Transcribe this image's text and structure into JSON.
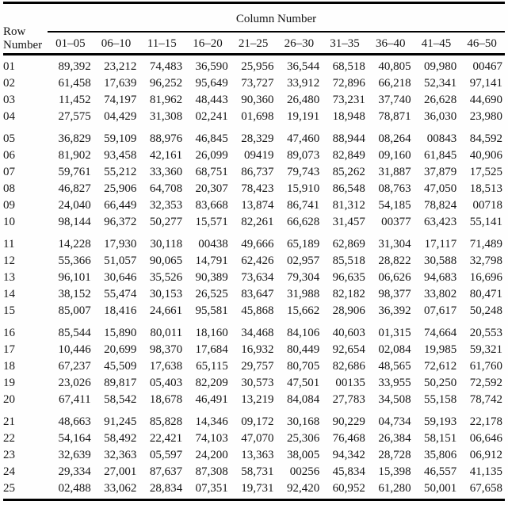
{
  "table": {
    "title": "Column Number",
    "row_header_line1": "Row",
    "row_header_line2": "Number",
    "column_headers": [
      "01–05",
      "06–10",
      "11–15",
      "16–20",
      "21–25",
      "26–30",
      "31–35",
      "36–40",
      "41–45",
      "46–50"
    ],
    "text_color": "#161616",
    "rule_color": "#000000",
    "row_groups": [
      {
        "rows": [
          {
            "row_number": "01",
            "values": [
              "89,392",
              "23,212",
              "74,483",
              "36,590",
              "25,956",
              "36,544",
              "68,518",
              "40,805",
              "09,980",
              "00467"
            ]
          },
          {
            "row_number": "02",
            "values": [
              "61,458",
              "17,639",
              "96,252",
              "95,649",
              "73,727",
              "33,912",
              "72,896",
              "66,218",
              "52,341",
              "97,141"
            ]
          },
          {
            "row_number": "03",
            "values": [
              "11,452",
              "74,197",
              "81,962",
              "48,443",
              "90,360",
              "26,480",
              "73,231",
              "37,740",
              "26,628",
              "44,690"
            ]
          },
          {
            "row_number": "04",
            "values": [
              "27,575",
              "04,429",
              "31,308",
              "02,241",
              "01,698",
              "19,191",
              "18,948",
              "78,871",
              "36,030",
              "23,980"
            ]
          }
        ]
      },
      {
        "rows": [
          {
            "row_number": "05",
            "values": [
              "36,829",
              "59,109",
              "88,976",
              "46,845",
              "28,329",
              "47,460",
              "88,944",
              "08,264",
              "00843",
              "84,592"
            ]
          },
          {
            "row_number": "06",
            "values": [
              "81,902",
              "93,458",
              "42,161",
              "26,099",
              "09419",
              "89,073",
              "82,849",
              "09,160",
              "61,845",
              "40,906"
            ]
          },
          {
            "row_number": "07",
            "values": [
              "59,761",
              "55,212",
              "33,360",
              "68,751",
              "86,737",
              "79,743",
              "85,262",
              "31,887",
              "37,879",
              "17,525"
            ]
          },
          {
            "row_number": "08",
            "values": [
              "46,827",
              "25,906",
              "64,708",
              "20,307",
              "78,423",
              "15,910",
              "86,548",
              "08,763",
              "47,050",
              "18,513"
            ]
          },
          {
            "row_number": "09",
            "values": [
              "24,040",
              "66,449",
              "32,353",
              "83,668",
              "13,874",
              "86,741",
              "81,312",
              "54,185",
              "78,824",
              "00718"
            ]
          },
          {
            "row_number": "10",
            "values": [
              "98,144",
              "96,372",
              "50,277",
              "15,571",
              "82,261",
              "66,628",
              "31,457",
              "00377",
              "63,423",
              "55,141"
            ]
          }
        ]
      },
      {
        "rows": [
          {
            "row_number": "11",
            "values": [
              "14,228",
              "17,930",
              "30,118",
              "00438",
              "49,666",
              "65,189",
              "62,869",
              "31,304",
              "17,117",
              "71,489"
            ]
          },
          {
            "row_number": "12",
            "values": [
              "55,366",
              "51,057",
              "90,065",
              "14,791",
              "62,426",
              "02,957",
              "85,518",
              "28,822",
              "30,588",
              "32,798"
            ]
          },
          {
            "row_number": "13",
            "values": [
              "96,101",
              "30,646",
              "35,526",
              "90,389",
              "73,634",
              "79,304",
              "96,635",
              "06,626",
              "94,683",
              "16,696"
            ]
          },
          {
            "row_number": "14",
            "values": [
              "38,152",
              "55,474",
              "30,153",
              "26,525",
              "83,647",
              "31,988",
              "82,182",
              "98,377",
              "33,802",
              "80,471"
            ]
          },
          {
            "row_number": "15",
            "values": [
              "85,007",
              "18,416",
              "24,661",
              "95,581",
              "45,868",
              "15,662",
              "28,906",
              "36,392",
              "07,617",
              "50,248"
            ]
          }
        ]
      },
      {
        "rows": [
          {
            "row_number": "16",
            "values": [
              "85,544",
              "15,890",
              "80,011",
              "18,160",
              "34,468",
              "84,106",
              "40,603",
              "01,315",
              "74,664",
              "20,553"
            ]
          },
          {
            "row_number": "17",
            "values": [
              "10,446",
              "20,699",
              "98,370",
              "17,684",
              "16,932",
              "80,449",
              "92,654",
              "02,084",
              "19,985",
              "59,321"
            ]
          },
          {
            "row_number": "18",
            "values": [
              "67,237",
              "45,509",
              "17,638",
              "65,115",
              "29,757",
              "80,705",
              "82,686",
              "48,565",
              "72,612",
              "61,760"
            ]
          },
          {
            "row_number": "19",
            "values": [
              "23,026",
              "89,817",
              "05,403",
              "82,209",
              "30,573",
              "47,501",
              "00135",
              "33,955",
              "50,250",
              "72,592"
            ]
          },
          {
            "row_number": "20",
            "values": [
              "67,411",
              "58,542",
              "18,678",
              "46,491",
              "13,219",
              "84,084",
              "27,783",
              "34,508",
              "55,158",
              "78,742"
            ]
          }
        ]
      },
      {
        "rows": [
          {
            "row_number": "21",
            "values": [
              "48,663",
              "91,245",
              "85,828",
              "14,346",
              "09,172",
              "30,168",
              "90,229",
              "04,734",
              "59,193",
              "22,178"
            ]
          },
          {
            "row_number": "22",
            "values": [
              "54,164",
              "58,492",
              "22,421",
              "74,103",
              "47,070",
              "25,306",
              "76,468",
              "26,384",
              "58,151",
              "06,646"
            ]
          },
          {
            "row_number": "23",
            "values": [
              "32,639",
              "32,363",
              "05,597",
              "24,200",
              "13,363",
              "38,005",
              "94,342",
              "28,728",
              "35,806",
              "06,912"
            ]
          },
          {
            "row_number": "24",
            "values": [
              "29,334",
              "27,001",
              "87,637",
              "87,308",
              "58,731",
              "00256",
              "45,834",
              "15,398",
              "46,557",
              "41,135"
            ]
          },
          {
            "row_number": "25",
            "values": [
              "02,488",
              "33,062",
              "28,834",
              "07,351",
              "19,731",
              "92,420",
              "60,952",
              "61,280",
              "50,001",
              "67,658"
            ]
          }
        ]
      }
    ]
  }
}
